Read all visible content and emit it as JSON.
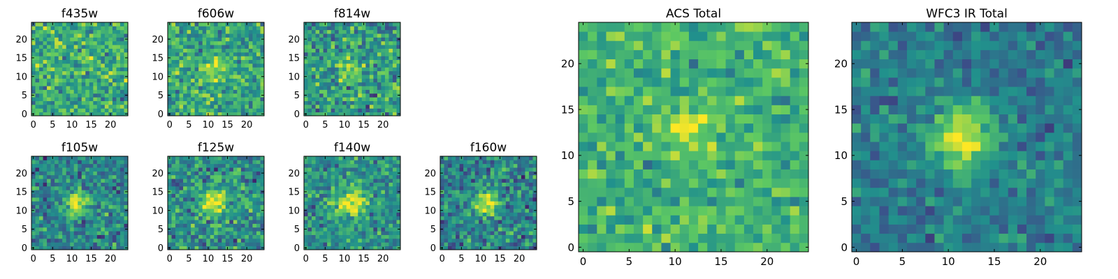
{
  "figure": {
    "background": "#ffffff",
    "colormap": "viridis",
    "colormap_stops": [
      "#440154",
      "#3b528b",
      "#21918c",
      "#5ec962",
      "#fde725"
    ]
  },
  "chart_data": [
    {
      "type": "heatmap",
      "title": "f435w",
      "grid": "25x25",
      "xlim": [
        -0.5,
        24.5
      ],
      "ylim": [
        -0.5,
        24.5
      ],
      "xticks": [
        0,
        5,
        10,
        15,
        20
      ],
      "yticks": [
        0,
        5,
        10,
        15,
        20
      ],
      "xtick_labels": [
        "0",
        "5",
        "10",
        "15",
        "20"
      ],
      "ytick_labels": [
        "0",
        "5",
        "10",
        "15",
        "20"
      ],
      "background_level": 0.62,
      "noise_level": 0.2,
      "source_center": [
        11.5,
        12.0
      ],
      "source_peak": 0.05,
      "source_width": 2.2,
      "seed": 11
    },
    {
      "type": "heatmap",
      "title": "f606w",
      "grid": "25x25",
      "xlim": [
        -0.5,
        24.5
      ],
      "ylim": [
        -0.5,
        24.5
      ],
      "xticks": [
        0,
        5,
        10,
        15,
        20
      ],
      "yticks": [
        0,
        5,
        10,
        15,
        20
      ],
      "xtick_labels": [
        "0",
        "5",
        "10",
        "15",
        "20"
      ],
      "ytick_labels": [
        "0",
        "5",
        "10",
        "15",
        "20"
      ],
      "background_level": 0.6,
      "noise_level": 0.2,
      "source_center": [
        11.5,
        12.0
      ],
      "source_peak": 0.3,
      "source_width": 2.0,
      "seed": 23
    },
    {
      "type": "heatmap",
      "title": "f814w",
      "grid": "25x25",
      "xlim": [
        -0.5,
        24.5
      ],
      "ylim": [
        -0.5,
        24.5
      ],
      "xticks": [
        0,
        5,
        10,
        15,
        20
      ],
      "yticks": [
        0,
        5,
        10,
        15,
        20
      ],
      "xtick_labels": [
        "0",
        "5",
        "10",
        "15",
        "20"
      ],
      "ytick_labels": [
        "0",
        "5",
        "10",
        "15",
        "20"
      ],
      "background_level": 0.55,
      "noise_level": 0.22,
      "source_center": [
        11.5,
        12.0
      ],
      "source_peak": 0.3,
      "source_width": 2.0,
      "seed": 37
    },
    {
      "type": "heatmap",
      "title": "f105w",
      "grid": "25x25",
      "xlim": [
        -0.5,
        24.5
      ],
      "ylim": [
        -0.5,
        24.5
      ],
      "xticks": [
        0,
        5,
        10,
        15,
        20
      ],
      "yticks": [
        0,
        5,
        10,
        15,
        20
      ],
      "xtick_labels": [
        "0",
        "5",
        "10",
        "15",
        "20"
      ],
      "ytick_labels": [
        "0",
        "5",
        "10",
        "15",
        "20"
      ],
      "background_level": 0.45,
      "noise_level": 0.2,
      "source_center": [
        11.5,
        12.0
      ],
      "source_peak": 0.55,
      "source_width": 2.2,
      "seed": 41
    },
    {
      "type": "heatmap",
      "title": "f125w",
      "grid": "25x25",
      "xlim": [
        -0.5,
        24.5
      ],
      "ylim": [
        -0.5,
        24.5
      ],
      "xticks": [
        0,
        5,
        10,
        15,
        20
      ],
      "yticks": [
        0,
        5,
        10,
        15,
        20
      ],
      "xtick_labels": [
        "0",
        "5",
        "10",
        "15",
        "20"
      ],
      "ytick_labels": [
        "0",
        "5",
        "10",
        "15",
        "20"
      ],
      "background_level": 0.5,
      "noise_level": 0.2,
      "source_center": [
        11.5,
        12.0
      ],
      "source_peak": 0.5,
      "source_width": 2.4,
      "seed": 53
    },
    {
      "type": "heatmap",
      "title": "f140w",
      "grid": "25x25",
      "xlim": [
        -0.5,
        24.5
      ],
      "ylim": [
        -0.5,
        24.5
      ],
      "xticks": [
        0,
        5,
        10,
        15,
        20
      ],
      "yticks": [
        0,
        5,
        10,
        15,
        20
      ],
      "xtick_labels": [
        "0",
        "5",
        "10",
        "15",
        "20"
      ],
      "ytick_labels": [
        "0",
        "5",
        "10",
        "15",
        "20"
      ],
      "background_level": 0.5,
      "noise_level": 0.18,
      "source_center": [
        11.5,
        12.0
      ],
      "source_peak": 0.5,
      "source_width": 2.8,
      "seed": 67
    },
    {
      "type": "heatmap",
      "title": "f160w",
      "grid": "25x25",
      "xlim": [
        -0.5,
        24.5
      ],
      "ylim": [
        -0.5,
        24.5
      ],
      "xticks": [
        0,
        5,
        10,
        15,
        20
      ],
      "yticks": [
        0,
        5,
        10,
        15,
        20
      ],
      "xtick_labels": [
        "0",
        "5",
        "10",
        "15",
        "20"
      ],
      "ytick_labels": [
        "0",
        "5",
        "10",
        "15",
        "20"
      ],
      "background_level": 0.45,
      "noise_level": 0.2,
      "source_center": [
        11.5,
        12.0
      ],
      "source_peak": 0.55,
      "source_width": 2.2,
      "seed": 79
    },
    {
      "type": "heatmap",
      "title": "ACS Total",
      "grid": "25x25",
      "xlim": [
        -0.5,
        24.5
      ],
      "ylim": [
        -0.5,
        24.5
      ],
      "xticks": [
        0,
        5,
        10,
        15,
        20
      ],
      "yticks": [
        0,
        5,
        10,
        15,
        20
      ],
      "xtick_labels": [
        "0",
        "5",
        "10",
        "15",
        "20"
      ],
      "ytick_labels": [
        "0",
        "5",
        "10",
        "15",
        "20"
      ],
      "background_level": 0.65,
      "noise_level": 0.15,
      "source_center": [
        11.5,
        12.5
      ],
      "source_peak": 0.3,
      "source_width": 1.8,
      "seed": 97
    },
    {
      "type": "heatmap",
      "title": "WFC3 IR Total",
      "grid": "25x25",
      "xlim": [
        -0.5,
        24.5
      ],
      "ylim": [
        -0.5,
        24.5
      ],
      "xticks": [
        0,
        5,
        10,
        15,
        20
      ],
      "yticks": [
        0,
        5,
        10,
        15,
        20
      ],
      "xtick_labels": [
        "0",
        "5",
        "10",
        "15",
        "20"
      ],
      "ytick_labels": [
        "0",
        "5",
        "10",
        "15",
        "20"
      ],
      "background_level": 0.42,
      "noise_level": 0.13,
      "source_center": [
        11.5,
        12.0
      ],
      "source_peak": 0.58,
      "source_width": 2.4,
      "seed": 131
    }
  ]
}
